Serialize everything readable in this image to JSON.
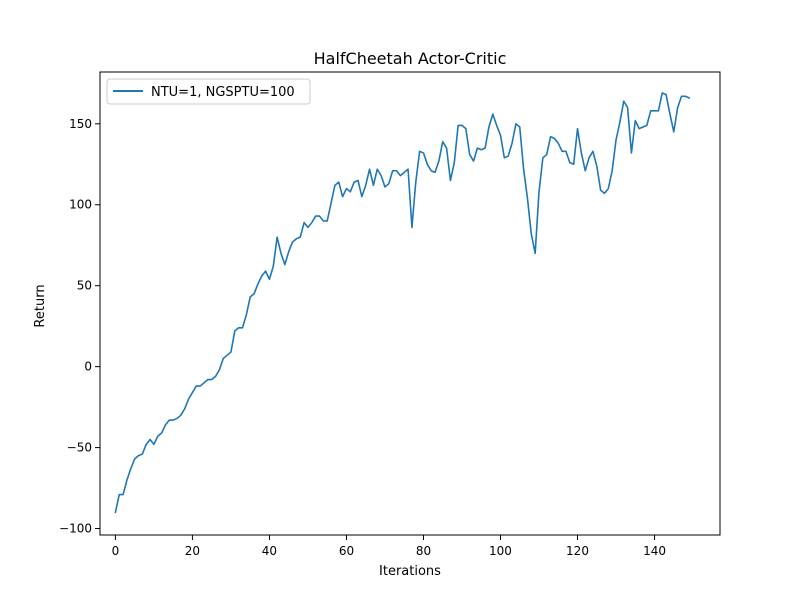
{
  "chart_data": {
    "type": "line",
    "title": "HalfCheetah Actor-Critic",
    "xlabel": "Iterations",
    "ylabel": "Return",
    "xlim": [
      -4,
      157
    ],
    "ylim": [
      -104,
      182
    ],
    "xticks": [
      0,
      20,
      40,
      60,
      80,
      100,
      120,
      140
    ],
    "yticks": [
      -100,
      -50,
      0,
      50,
      100,
      150
    ],
    "xtick_labels": [
      "0",
      "20",
      "40",
      "60",
      "80",
      "100",
      "120",
      "140"
    ],
    "ytick_labels": [
      "−100",
      "−50",
      "0",
      "50",
      "100",
      "150"
    ],
    "grid": false,
    "legend_position": "top-left",
    "series": [
      {
        "name": "NTU=1, NGSPTU=100",
        "color": "#1f77b4",
        "x": [
          0,
          1,
          2,
          3,
          4,
          5,
          6,
          7,
          8,
          9,
          10,
          11,
          12,
          13,
          14,
          15,
          16,
          17,
          18,
          19,
          20,
          21,
          22,
          23,
          24,
          25,
          26,
          27,
          28,
          29,
          30,
          31,
          32,
          33,
          34,
          35,
          36,
          37,
          38,
          39,
          40,
          41,
          42,
          43,
          44,
          45,
          46,
          47,
          48,
          49,
          50,
          51,
          52,
          53,
          54,
          55,
          56,
          57,
          58,
          59,
          60,
          61,
          62,
          63,
          64,
          65,
          66,
          67,
          68,
          69,
          70,
          71,
          72,
          73,
          74,
          75,
          76,
          77,
          78,
          79,
          80,
          81,
          82,
          83,
          84,
          85,
          86,
          87,
          88,
          89,
          90,
          91,
          92,
          93,
          94,
          95,
          96,
          97,
          98,
          99,
          100,
          101,
          102,
          103,
          104,
          105,
          106,
          107,
          108,
          109,
          110,
          111,
          112,
          113,
          114,
          115,
          116,
          117,
          118,
          119,
          120,
          121,
          122,
          123,
          124,
          125,
          126,
          127,
          128,
          129,
          130,
          131,
          132,
          133,
          134,
          135,
          136,
          137,
          138,
          139,
          140,
          141,
          142,
          143,
          144,
          145,
          146,
          147,
          148,
          149
        ],
        "y": [
          -90,
          -79,
          -79,
          -70,
          -63,
          -57,
          -55,
          -54,
          -48,
          -45,
          -48,
          -43,
          -41,
          -36,
          -33,
          -33,
          -32,
          -30,
          -26,
          -20,
          -16,
          -12,
          -12,
          -10,
          -8,
          -8,
          -6,
          -2,
          5,
          7,
          9,
          22,
          24,
          24,
          32,
          43,
          45,
          51,
          56,
          59,
          54,
          62,
          80,
          70,
          63,
          71,
          77,
          79,
          80,
          89,
          86,
          89,
          93,
          93,
          90,
          90,
          101,
          112,
          114,
          105,
          110,
          108,
          114,
          115,
          105,
          112,
          122,
          112,
          122,
          118,
          111,
          113,
          121,
          121,
          118,
          120,
          122,
          86,
          114,
          133,
          132,
          125,
          121,
          120,
          127,
          139,
          135,
          115,
          126,
          149,
          149,
          147,
          131,
          127,
          135,
          134,
          135,
          148,
          156,
          149,
          143,
          129,
          130,
          138,
          150,
          148,
          122,
          104,
          82,
          70,
          108,
          129,
          131,
          142,
          141,
          138,
          133,
          133,
          126,
          125,
          147,
          132,
          121,
          129,
          133,
          124,
          109,
          107,
          110,
          121,
          140,
          151,
          164,
          160,
          132,
          152,
          147,
          148,
          149,
          158,
          158,
          158,
          169,
          168,
          156,
          145,
          160,
          167,
          167,
          166
        ]
      }
    ]
  }
}
